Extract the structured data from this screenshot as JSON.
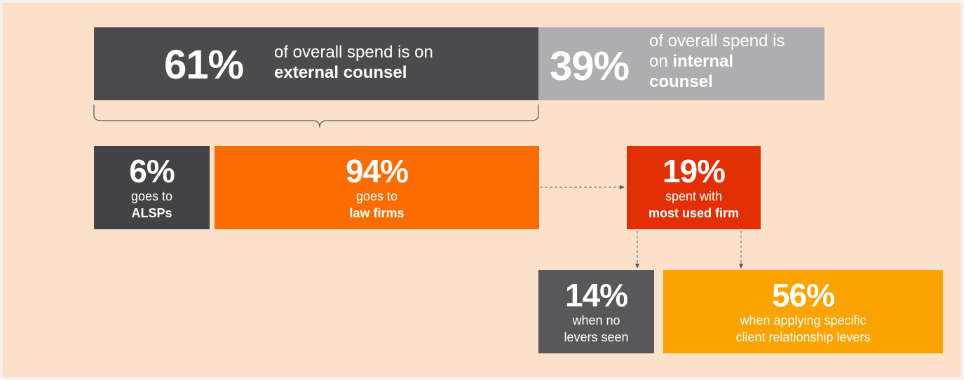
{
  "external": {
    "percent": "61%",
    "line1": "of overall spend is on",
    "line2": "external counsel"
  },
  "internal": {
    "percent": "39%",
    "line1": "of overall spend is",
    "line2_prefix": "on ",
    "line2_bold": "internal",
    "line3": "counsel"
  },
  "alsps": {
    "percent": "6%",
    "line1": "goes to",
    "line2": "ALSPs"
  },
  "law_firms": {
    "percent": "94%",
    "line1": "goes to",
    "line2": "law firms"
  },
  "most_used": {
    "percent": "19%",
    "line1": "spent with",
    "line2": "most used firm"
  },
  "no_levers": {
    "percent": "14%",
    "line1": "when no",
    "line2": "levers seen"
  },
  "levers": {
    "percent": "56%",
    "line1": "when applying specific",
    "line2": "client relationship levers"
  },
  "colors": {
    "background": "#fde0ca",
    "external": "#4b4a4c",
    "internal": "#aeadb0",
    "alsps": "#434244",
    "law_firms": "#fb6d00",
    "most_used": "#e23004",
    "no_levers": "#58585a",
    "levers": "#fba300"
  }
}
